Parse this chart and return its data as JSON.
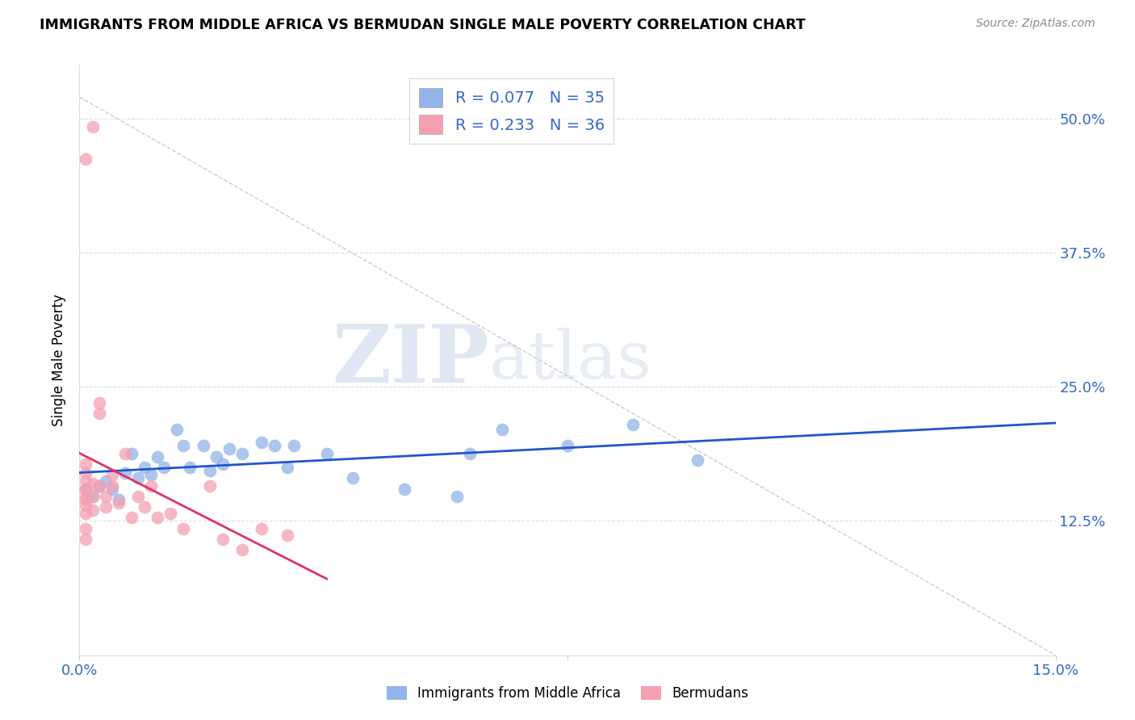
{
  "title": "IMMIGRANTS FROM MIDDLE AFRICA VS BERMUDAN SINGLE MALE POVERTY CORRELATION CHART",
  "source": "Source: ZipAtlas.com",
  "ylabel_label": "Single Male Poverty",
  "xlim": [
    0.0,
    0.15
  ],
  "ylim": [
    0.0,
    0.55
  ],
  "xtick_positions": [
    0.0,
    0.075,
    0.15
  ],
  "xtick_labels": [
    "0.0%",
    "",
    "15.0%"
  ],
  "ytick_positions": [
    0.125,
    0.25,
    0.375,
    0.5
  ],
  "ytick_labels": [
    "12.5%",
    "25.0%",
    "37.5%",
    "50.0%"
  ],
  "blue_color": "#92b4e8",
  "pink_color": "#f4a0b0",
  "trendline_blue": "#2255cc",
  "trendline_pink": "#dd3366",
  "legend_r_blue": "0.077",
  "legend_n_blue": "35",
  "legend_r_pink": "0.233",
  "legend_n_pink": "36",
  "blue_label": "Immigrants from Middle Africa",
  "pink_label": "Bermudans",
  "watermark_zip": "ZIP",
  "watermark_atlas": "atlas",
  "blue_x": [
    0.001,
    0.002,
    0.003,
    0.004,
    0.005,
    0.006,
    0.007,
    0.008,
    0.009,
    0.01,
    0.011,
    0.012,
    0.013,
    0.015,
    0.016,
    0.017,
    0.019,
    0.02,
    0.021,
    0.022,
    0.023,
    0.025,
    0.028,
    0.03,
    0.032,
    0.033,
    0.038,
    0.042,
    0.05,
    0.058,
    0.06,
    0.065,
    0.075,
    0.085,
    0.095
  ],
  "blue_y": [
    0.155,
    0.148,
    0.158,
    0.162,
    0.155,
    0.145,
    0.17,
    0.188,
    0.165,
    0.175,
    0.168,
    0.185,
    0.175,
    0.21,
    0.195,
    0.175,
    0.195,
    0.172,
    0.185,
    0.178,
    0.192,
    0.188,
    0.198,
    0.195,
    0.175,
    0.195,
    0.188,
    0.165,
    0.155,
    0.148,
    0.188,
    0.21,
    0.195,
    0.215,
    0.182
  ],
  "pink_x": [
    0.001,
    0.001,
    0.001,
    0.001,
    0.001,
    0.001,
    0.001,
    0.001,
    0.001,
    0.001,
    0.002,
    0.002,
    0.002,
    0.003,
    0.003,
    0.003,
    0.004,
    0.004,
    0.005,
    0.005,
    0.006,
    0.007,
    0.008,
    0.009,
    0.01,
    0.011,
    0.012,
    0.014,
    0.016,
    0.02,
    0.022,
    0.025,
    0.028,
    0.032,
    0.001,
    0.002
  ],
  "pink_y": [
    0.155,
    0.148,
    0.14,
    0.132,
    0.162,
    0.17,
    0.178,
    0.118,
    0.108,
    0.145,
    0.148,
    0.135,
    0.16,
    0.235,
    0.225,
    0.158,
    0.148,
    0.138,
    0.168,
    0.158,
    0.142,
    0.188,
    0.128,
    0.148,
    0.138,
    0.158,
    0.128,
    0.132,
    0.118,
    0.158,
    0.108,
    0.098,
    0.118,
    0.112,
    0.462,
    0.492
  ],
  "ref_line_x": [
    0.0,
    0.075
  ],
  "ref_line_y": [
    0.55,
    0.0
  ]
}
